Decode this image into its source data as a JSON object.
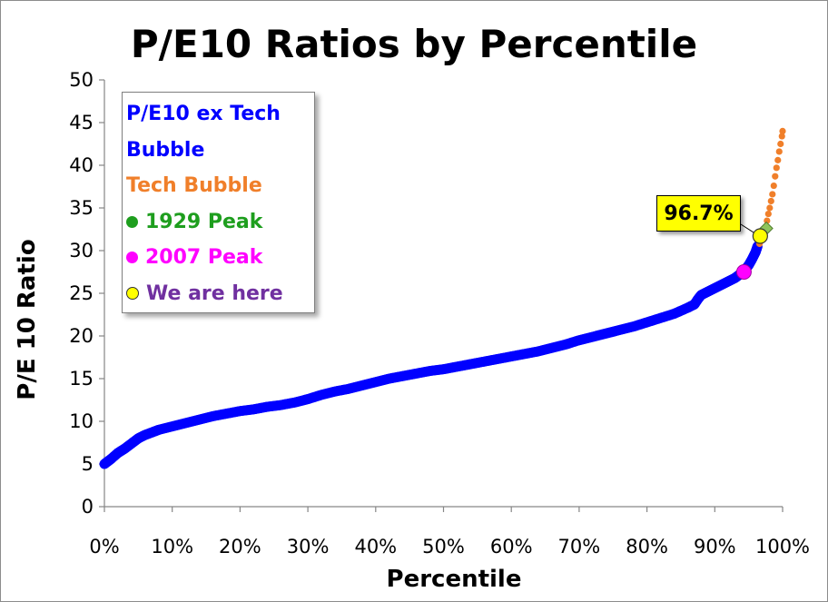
{
  "chart_data": {
    "type": "scatter",
    "title": "P/E10 Ratios by Percentile",
    "xlabel": "Percentile",
    "ylabel": "P/E 10 Ratio",
    "xlim": [
      0,
      1
    ],
    "ylim": [
      0,
      50
    ],
    "x_ticks": [
      "0%",
      "10%",
      "20%",
      "30%",
      "40%",
      "50%",
      "60%",
      "70%",
      "80%",
      "90%",
      "100%"
    ],
    "y_ticks": [
      "0",
      "5",
      "10",
      "15",
      "20",
      "25",
      "30",
      "35",
      "40",
      "45",
      "50"
    ],
    "legend_position": "top-left",
    "series": [
      {
        "name": "P/E10 ex Tech Bubble",
        "color": "#0000ff",
        "marker": "dense-dots",
        "points": [
          [
            0,
            5.0
          ],
          [
            0.01,
            5.6
          ],
          [
            0.02,
            6.3
          ],
          [
            0.03,
            6.8
          ],
          [
            0.04,
            7.4
          ],
          [
            0.05,
            8.0
          ],
          [
            0.06,
            8.4
          ],
          [
            0.07,
            8.7
          ],
          [
            0.08,
            9.0
          ],
          [
            0.1,
            9.4
          ],
          [
            0.12,
            9.8
          ],
          [
            0.14,
            10.2
          ],
          [
            0.16,
            10.6
          ],
          [
            0.18,
            10.9
          ],
          [
            0.2,
            11.2
          ],
          [
            0.22,
            11.4
          ],
          [
            0.24,
            11.7
          ],
          [
            0.26,
            11.9
          ],
          [
            0.28,
            12.2
          ],
          [
            0.3,
            12.6
          ],
          [
            0.32,
            13.1
          ],
          [
            0.34,
            13.5
          ],
          [
            0.36,
            13.8
          ],
          [
            0.38,
            14.2
          ],
          [
            0.4,
            14.6
          ],
          [
            0.42,
            15.0
          ],
          [
            0.44,
            15.3
          ],
          [
            0.46,
            15.6
          ],
          [
            0.48,
            15.9
          ],
          [
            0.5,
            16.1
          ],
          [
            0.52,
            16.4
          ],
          [
            0.54,
            16.7
          ],
          [
            0.56,
            17.0
          ],
          [
            0.58,
            17.3
          ],
          [
            0.6,
            17.6
          ],
          [
            0.62,
            17.9
          ],
          [
            0.64,
            18.2
          ],
          [
            0.66,
            18.6
          ],
          [
            0.68,
            19.0
          ],
          [
            0.7,
            19.5
          ],
          [
            0.72,
            19.9
          ],
          [
            0.74,
            20.3
          ],
          [
            0.76,
            20.7
          ],
          [
            0.78,
            21.1
          ],
          [
            0.8,
            21.6
          ],
          [
            0.82,
            22.1
          ],
          [
            0.84,
            22.6
          ],
          [
            0.86,
            23.3
          ],
          [
            0.87,
            23.7
          ],
          [
            0.875,
            24.3
          ],
          [
            0.88,
            24.8
          ],
          [
            0.89,
            25.2
          ],
          [
            0.9,
            25.6
          ],
          [
            0.91,
            26.0
          ],
          [
            0.92,
            26.4
          ],
          [
            0.93,
            26.8
          ],
          [
            0.935,
            27.1
          ],
          [
            0.94,
            27.4
          ],
          [
            0.945,
            27.8
          ],
          [
            0.95,
            28.3
          ],
          [
            0.955,
            29.0
          ],
          [
            0.96,
            29.8
          ],
          [
            0.963,
            30.5
          ]
        ]
      },
      {
        "name": "Tech Bubble",
        "color": "#f07f2a",
        "marker": "dots",
        "points": [
          [
            0.966,
            30.8
          ],
          [
            0.97,
            31.6
          ],
          [
            0.974,
            32.5
          ],
          [
            0.977,
            33.5
          ],
          [
            0.979,
            34.3
          ],
          [
            0.981,
            35.0
          ],
          [
            0.983,
            35.8
          ],
          [
            0.985,
            36.6
          ],
          [
            0.987,
            37.6
          ],
          [
            0.989,
            38.7
          ],
          [
            0.991,
            39.7
          ],
          [
            0.993,
            40.6
          ],
          [
            0.995,
            41.6
          ],
          [
            0.997,
            42.5
          ],
          [
            0.999,
            43.4
          ],
          [
            1.0,
            44.0
          ]
        ]
      },
      {
        "name": "1929 Peak",
        "color": "#1e9e1e",
        "marker": "diamond",
        "points": [
          [
            0.976,
            32.6
          ]
        ]
      },
      {
        "name": "2007 Peak",
        "color": "#ff00ff",
        "marker": "circle",
        "points": [
          [
            0.943,
            27.5
          ]
        ]
      },
      {
        "name": "We are here",
        "color": "#ffff00",
        "marker": "circle",
        "points": [
          [
            0.967,
            31.7
          ]
        ]
      }
    ],
    "annotations": [
      {
        "text": "96.7%",
        "target_series": "We are here"
      }
    ]
  },
  "legend": {
    "items": [
      {
        "label": "P/E10 ex Tech Bubble",
        "color": "#0000ff",
        "marker": "none"
      },
      {
        "label": "Tech Bubble",
        "color": "#f07f2a",
        "marker": "none"
      },
      {
        "label": "1929 Peak",
        "color": "#1e9e1e",
        "marker": "green-dot-icon"
      },
      {
        "label": "2007 Peak",
        "color": "#ff00ff",
        "marker": "magenta-dot-icon"
      },
      {
        "label": "We are here",
        "color": "#7030a0",
        "marker": "yellow-dot-icon"
      }
    ]
  },
  "callout": {
    "text": "96.7%"
  }
}
